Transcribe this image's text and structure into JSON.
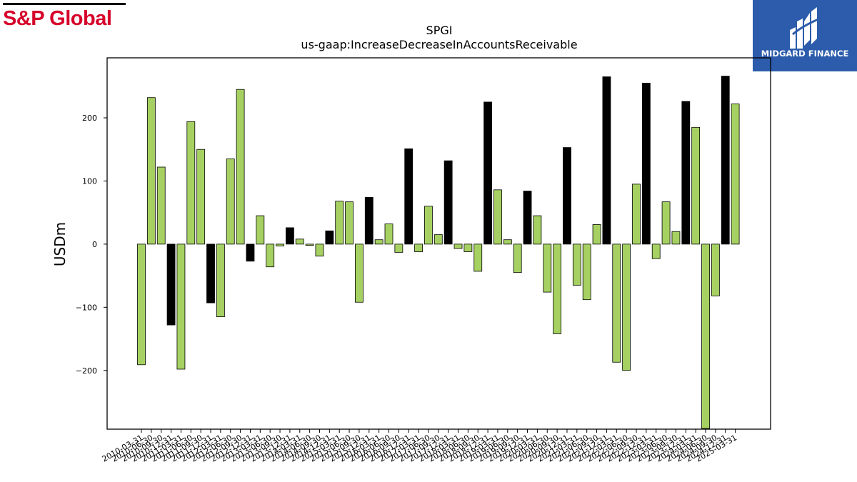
{
  "brand": {
    "left_name": "S&P Global",
    "right_name": "MIDGARD FINANCE"
  },
  "colors": {
    "positive_green": "#a6d162",
    "highlight_black": "#000000",
    "brand_red": "#d6002a",
    "brand_blue": "#2c5cab"
  },
  "chart_data": {
    "type": "bar",
    "title": "SPGI",
    "subtitle": "us-gaap:IncreaseDecreaseInAccountsReceivable",
    "ylabel": "USDm",
    "xlabel": "",
    "ylim": [
      -293,
      295
    ],
    "yticks": [
      -200,
      -100,
      0,
      100,
      200
    ],
    "grid": false,
    "categories": [
      "2010-03-31",
      "2010-06-30",
      "2010-09-30",
      "2010-12-31",
      "2011-03-31",
      "2011-06-30",
      "2011-09-30",
      "2011-12-31",
      "2012-03-31",
      "2012-06-30",
      "2012-09-30",
      "2012-12-31",
      "2013-03-31",
      "2013-06-30",
      "2013-09-30",
      "2013-12-31",
      "2014-03-31",
      "2014-06-30",
      "2014-09-30",
      "2014-12-31",
      "2015-03-31",
      "2015-06-30",
      "2015-09-30",
      "2015-12-31",
      "2016-03-31",
      "2016-06-30",
      "2016-09-30",
      "2016-12-31",
      "2017-03-31",
      "2017-06-30",
      "2017-09-30",
      "2017-12-31",
      "2018-03-31",
      "2018-06-30",
      "2018-09-30",
      "2018-12-31",
      "2019-03-31",
      "2019-06-30",
      "2019-09-30",
      "2019-12-31",
      "2020-03-31",
      "2020-06-30",
      "2020-09-30",
      "2020-12-31",
      "2021-03-31",
      "2021-06-30",
      "2021-09-30",
      "2021-12-31",
      "2022-03-31",
      "2022-06-30",
      "2022-09-30",
      "2022-12-31",
      "2023-03-31",
      "2023-06-30",
      "2023-09-30",
      "2023-12-31",
      "2024-03-31",
      "2024-06-30",
      "2024-09-30",
      "2024-12-31",
      "2025-03-31"
    ],
    "values": [
      -191,
      232,
      122,
      -128,
      -198,
      194,
      150,
      -93,
      -115,
      135,
      245,
      -27,
      45,
      -36,
      -3,
      26,
      8,
      -2,
      -19,
      21,
      68,
      67,
      -92,
      74,
      7,
      32,
      -13,
      151,
      -12,
      60,
      15,
      132,
      -7,
      -12,
      -43,
      225,
      86,
      7,
      -45,
      84,
      45,
      -76,
      -142,
      153,
      -65,
      -88,
      31,
      265,
      -187,
      -200,
      95,
      255,
      -23,
      67,
      20,
      226,
      185,
      -292,
      -82,
      266,
      222
    ],
    "highlight": [
      false,
      false,
      false,
      true,
      false,
      false,
      false,
      true,
      false,
      false,
      false,
      true,
      false,
      false,
      false,
      true,
      false,
      false,
      false,
      true,
      false,
      false,
      false,
      true,
      false,
      false,
      false,
      true,
      false,
      false,
      false,
      true,
      false,
      false,
      false,
      true,
      false,
      false,
      false,
      true,
      false,
      false,
      false,
      true,
      false,
      false,
      false,
      true,
      false,
      false,
      false,
      true,
      false,
      false,
      false,
      true,
      false,
      false,
      false,
      true,
      false
    ]
  }
}
